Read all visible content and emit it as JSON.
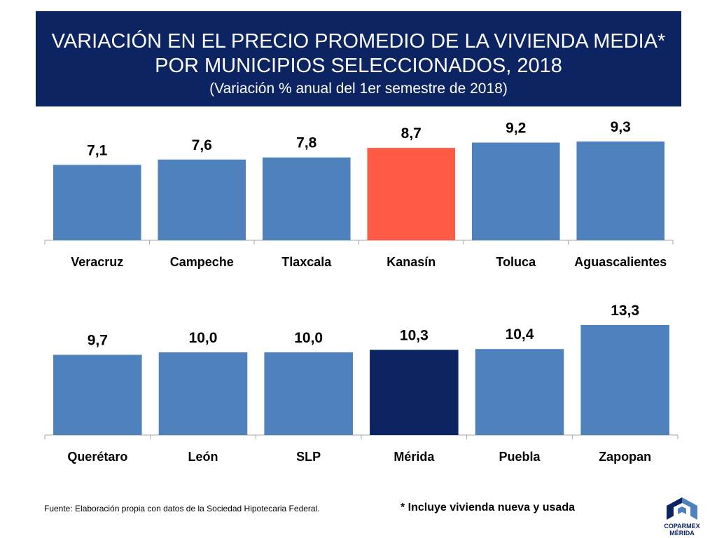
{
  "header": {
    "title_line1": "VARIACIÓN EN EL PRECIO PROMEDIO DE LA VIVIENDA MEDIA*",
    "title_line2": "POR MUNICIPIOS SELECCIONADOS, 2018",
    "subtitle": "(Variación % anual del 1er semestre de 2018)"
  },
  "chart_data": [
    {
      "type": "bar",
      "categories": [
        "Veracruz",
        "Campeche",
        "Tlaxcala",
        "Kanasín",
        "Toluca",
        "Aguascalientes"
      ],
      "values": [
        7.1,
        7.6,
        7.8,
        8.7,
        9.2,
        9.3
      ],
      "labels": [
        "7,1",
        "7,6",
        "7,8",
        "8,7",
        "9,2",
        "9,3"
      ],
      "colors": [
        "#4f81bd",
        "#4f81bd",
        "#4f81bd",
        "#ff5a44",
        "#4f81bd",
        "#4f81bd"
      ],
      "ylim": [
        0,
        9.3
      ],
      "grid": false,
      "legend": "none"
    },
    {
      "type": "bar",
      "categories": [
        "Querétaro",
        "León",
        "SLP",
        "Mérida",
        "Puebla",
        "Zapopan"
      ],
      "values": [
        9.7,
        10.0,
        10.0,
        10.3,
        10.4,
        13.3
      ],
      "labels": [
        "9,7",
        "10,0",
        "10,0",
        "10,3",
        "10,4",
        "13,3"
      ],
      "colors": [
        "#4f81bd",
        "#4f81bd",
        "#4f81bd",
        "#0c2461",
        "#4f81bd",
        "#4f81bd"
      ],
      "ylim": [
        0,
        13.3
      ],
      "grid": false,
      "legend": "none"
    }
  ],
  "footer": {
    "source": "Fuente: Elaboración propia con datos de la Sociedad Hipotecaria Federal.",
    "note": "* Incluye vivienda nueva y usada",
    "logo_line1": "COPARMEX",
    "logo_line2": "MÉRIDA"
  },
  "colors": {
    "banner": "#0c2461",
    "bar": "#4f81bd",
    "highlight_red": "#ff5a44",
    "highlight_navy": "#0c2461",
    "axis": "#a6a6a6"
  }
}
